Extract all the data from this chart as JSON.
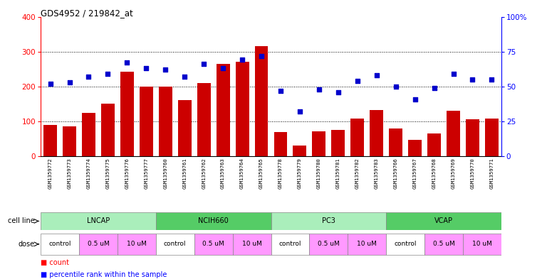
{
  "title": "GDS4952 / 219842_at",
  "samples": [
    "GSM1359772",
    "GSM1359773",
    "GSM1359774",
    "GSM1359775",
    "GSM1359776",
    "GSM1359777",
    "GSM1359760",
    "GSM1359761",
    "GSM1359762",
    "GSM1359763",
    "GSM1359764",
    "GSM1359765",
    "GSM1359778",
    "GSM1359779",
    "GSM1359780",
    "GSM1359781",
    "GSM1359782",
    "GSM1359783",
    "GSM1359766",
    "GSM1359767",
    "GSM1359768",
    "GSM1359769",
    "GSM1359770",
    "GSM1359771"
  ],
  "counts": [
    90,
    85,
    125,
    150,
    242,
    200,
    200,
    160,
    210,
    265,
    270,
    315,
    70,
    30,
    72,
    75,
    108,
    132,
    80,
    46,
    65,
    130,
    105,
    108
  ],
  "percentile_ranks": [
    52,
    53,
    57,
    59,
    67,
    63,
    62,
    57,
    66,
    63,
    69,
    72,
    47,
    32,
    48,
    46,
    54,
    58,
    50,
    41,
    49,
    59,
    55,
    55
  ],
  "cell_groups": [
    {
      "label": "LNCAP",
      "start": 0,
      "end": 6
    },
    {
      "label": "NCIH660",
      "start": 6,
      "end": 12
    },
    {
      "label": "PC3",
      "start": 12,
      "end": 18
    },
    {
      "label": "VCAP",
      "start": 18,
      "end": 24
    }
  ],
  "cell_line_colors": [
    "#aaeebb",
    "#77dd88",
    "#aaeebb",
    "#33cc55"
  ],
  "dose_groups": [
    {
      "label": "control",
      "start": 0,
      "end": 2,
      "color": "#ffffff"
    },
    {
      "label": "0.5 uM",
      "start": 2,
      "end": 4,
      "color": "#FF99FF"
    },
    {
      "label": "10 uM",
      "start": 4,
      "end": 6,
      "color": "#FF99FF"
    },
    {
      "label": "control",
      "start": 6,
      "end": 8,
      "color": "#ffffff"
    },
    {
      "label": "0.5 uM",
      "start": 8,
      "end": 10,
      "color": "#FF99FF"
    },
    {
      "label": "10 uM",
      "start": 10,
      "end": 12,
      "color": "#FF99FF"
    },
    {
      "label": "control",
      "start": 12,
      "end": 14,
      "color": "#ffffff"
    },
    {
      "label": "0.5 uM",
      "start": 14,
      "end": 16,
      "color": "#FF99FF"
    },
    {
      "label": "10 uM",
      "start": 16,
      "end": 18,
      "color": "#FF99FF"
    },
    {
      "label": "control",
      "start": 18,
      "end": 20,
      "color": "#ffffff"
    },
    {
      "label": "0.5 uM",
      "start": 20,
      "end": 22,
      "color": "#FF99FF"
    },
    {
      "label": "10 uM",
      "start": 22,
      "end": 24,
      "color": "#FF99FF"
    }
  ],
  "bar_color": "#CC0000",
  "dot_color": "#0000CC",
  "left_ylim": [
    0,
    400
  ],
  "right_ylim": [
    0,
    100
  ],
  "left_yticks": [
    0,
    100,
    200,
    300,
    400
  ],
  "right_yticks": [
    0,
    25,
    50,
    75,
    100
  ],
  "right_yticklabels": [
    "0",
    "25",
    "50",
    "75",
    "100%"
  ],
  "grid_lines": [
    100,
    200,
    300
  ],
  "background_color": "#ffffff"
}
